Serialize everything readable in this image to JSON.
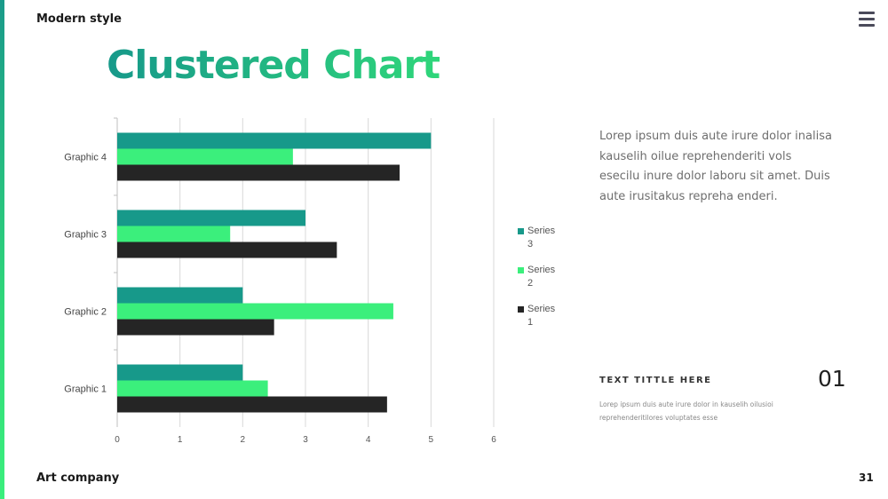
{
  "header": {
    "top_left": "Modern style"
  },
  "menu_icon": "hamburger-menu-icon",
  "title": "Clustered Chart",
  "body_text": "Lorep  ipsum duis aute irure dolor inalisa kauselih oilue reprehenderiti vols esecilu inure dolor laboru sit amet. Duis aute irusitakus repreha enderi.",
  "sub_title": "TEXT TITTLE HERE",
  "big_number": "01",
  "small_text": "Lorep  ipsum  duis  aute  irure  dolor  in  kauselih  oilusioi reprehenderitilores   voluptates   esse",
  "footer": {
    "left": "Art company",
    "page": "31"
  },
  "colors": {
    "series3": "#17998a",
    "series2": "#3bef7c",
    "series1": "#252525",
    "accent_start": "#17998a",
    "accent_end": "#2fd67a"
  },
  "chart_data": {
    "type": "bar",
    "orientation": "horizontal",
    "categories": [
      "Graphic 1",
      "Graphic 2",
      "Graphic 3",
      "Graphic 4"
    ],
    "series": [
      {
        "name": "Series 3",
        "values": [
          2,
          2,
          3,
          5
        ]
      },
      {
        "name": "Series 2",
        "values": [
          2.4,
          4.4,
          1.8,
          2.8
        ]
      },
      {
        "name": "Series 1",
        "values": [
          4.3,
          2.5,
          3.5,
          4.5
        ]
      }
    ],
    "legend": [
      {
        "label_line1": "Series",
        "label_line2": "3",
        "series": "Series 3"
      },
      {
        "label_line1": "Series",
        "label_line2": "2",
        "series": "Series 2"
      },
      {
        "label_line1": "Series",
        "label_line2": "1",
        "series": "Series 1"
      }
    ],
    "xlim": [
      0,
      6
    ],
    "xticks": [
      "0",
      "1",
      "2",
      "3",
      "4",
      "5",
      "6"
    ],
    "grid": true,
    "legend_position": "right"
  }
}
